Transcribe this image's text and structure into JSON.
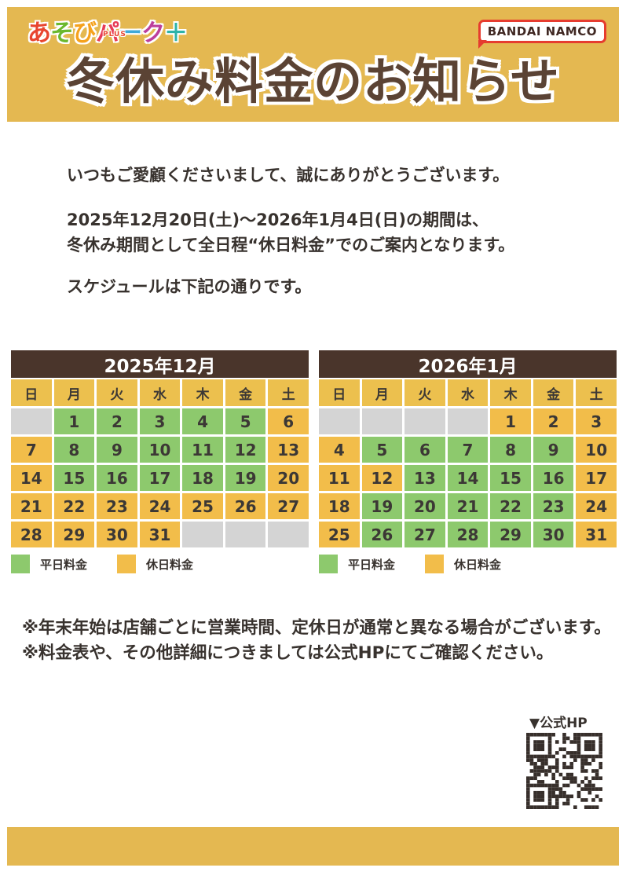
{
  "header": {
    "logo": {
      "chars": [
        {
          "ch": "あ",
          "color": "#e8452f"
        },
        {
          "ch": "そ",
          "color": "#6ab82d"
        },
        {
          "ch": "び",
          "color": "#f5a21d"
        },
        {
          "ch": "パ",
          "color": "#e73b56"
        },
        {
          "ch": "ー",
          "color": "#3fa9d9"
        },
        {
          "ch": "ク",
          "color": "#bc3f9c"
        },
        {
          "ch": "＋",
          "color": "#2db3a8"
        }
      ],
      "sub_label": "PLUS"
    },
    "company_badge": "BANDAI NAMCO",
    "title": "冬休み料金のお知らせ"
  },
  "body": {
    "greeting": "いつもご愛顧くださいまして、誠にありがとうございます。",
    "period_lines": [
      "2025年12月20日(土)～2026年1月4日(日)の期間は、",
      "冬休み期間として全日程“休日料金”でのご案内となります。"
    ],
    "schedule_intro": "スケジュールは下記の通りです。"
  },
  "legend": {
    "weekday_label": "平日料金",
    "holiday_label": "休日料金"
  },
  "calendars": [
    {
      "title": "2025年12月",
      "day_headers": [
        "日",
        "月",
        "火",
        "水",
        "木",
        "金",
        "土"
      ],
      "weeks": [
        [
          {
            "day": "",
            "type": "empty"
          },
          {
            "day": "1",
            "type": "weekday"
          },
          {
            "day": "2",
            "type": "weekday"
          },
          {
            "day": "3",
            "type": "weekday"
          },
          {
            "day": "4",
            "type": "weekday"
          },
          {
            "day": "5",
            "type": "weekday"
          },
          {
            "day": "6",
            "type": "holiday"
          }
        ],
        [
          {
            "day": "7",
            "type": "holiday"
          },
          {
            "day": "8",
            "type": "weekday"
          },
          {
            "day": "9",
            "type": "weekday"
          },
          {
            "day": "10",
            "type": "weekday"
          },
          {
            "day": "11",
            "type": "weekday"
          },
          {
            "day": "12",
            "type": "weekday"
          },
          {
            "day": "13",
            "type": "holiday"
          }
        ],
        [
          {
            "day": "14",
            "type": "holiday"
          },
          {
            "day": "15",
            "type": "weekday"
          },
          {
            "day": "16",
            "type": "weekday"
          },
          {
            "day": "17",
            "type": "weekday"
          },
          {
            "day": "18",
            "type": "weekday"
          },
          {
            "day": "19",
            "type": "weekday"
          },
          {
            "day": "20",
            "type": "holiday"
          }
        ],
        [
          {
            "day": "21",
            "type": "holiday"
          },
          {
            "day": "22",
            "type": "holiday"
          },
          {
            "day": "23",
            "type": "holiday"
          },
          {
            "day": "24",
            "type": "holiday"
          },
          {
            "day": "25",
            "type": "holiday"
          },
          {
            "day": "26",
            "type": "holiday"
          },
          {
            "day": "27",
            "type": "holiday"
          }
        ],
        [
          {
            "day": "28",
            "type": "holiday"
          },
          {
            "day": "29",
            "type": "holiday"
          },
          {
            "day": "30",
            "type": "holiday"
          },
          {
            "day": "31",
            "type": "holiday"
          },
          {
            "day": "",
            "type": "empty"
          },
          {
            "day": "",
            "type": "empty"
          },
          {
            "day": "",
            "type": "empty"
          }
        ]
      ]
    },
    {
      "title": "2026年1月",
      "day_headers": [
        "日",
        "月",
        "火",
        "水",
        "木",
        "金",
        "土"
      ],
      "weeks": [
        [
          {
            "day": "",
            "type": "empty"
          },
          {
            "day": "",
            "type": "empty"
          },
          {
            "day": "",
            "type": "empty"
          },
          {
            "day": "",
            "type": "empty"
          },
          {
            "day": "1",
            "type": "holiday"
          },
          {
            "day": "2",
            "type": "holiday"
          },
          {
            "day": "3",
            "type": "holiday"
          }
        ],
        [
          {
            "day": "4",
            "type": "holiday"
          },
          {
            "day": "5",
            "type": "weekday"
          },
          {
            "day": "6",
            "type": "weekday"
          },
          {
            "day": "7",
            "type": "weekday"
          },
          {
            "day": "8",
            "type": "weekday"
          },
          {
            "day": "9",
            "type": "weekday"
          },
          {
            "day": "10",
            "type": "holiday"
          }
        ],
        [
          {
            "day": "11",
            "type": "holiday"
          },
          {
            "day": "12",
            "type": "holiday"
          },
          {
            "day": "13",
            "type": "weekday"
          },
          {
            "day": "14",
            "type": "weekday"
          },
          {
            "day": "15",
            "type": "weekday"
          },
          {
            "day": "16",
            "type": "weekday"
          },
          {
            "day": "17",
            "type": "holiday"
          }
        ],
        [
          {
            "day": "18",
            "type": "holiday"
          },
          {
            "day": "19",
            "type": "weekday"
          },
          {
            "day": "20",
            "type": "weekday"
          },
          {
            "day": "21",
            "type": "weekday"
          },
          {
            "day": "22",
            "type": "weekday"
          },
          {
            "day": "23",
            "type": "weekday"
          },
          {
            "day": "24",
            "type": "holiday"
          }
        ],
        [
          {
            "day": "25",
            "type": "holiday"
          },
          {
            "day": "26",
            "type": "weekday"
          },
          {
            "day": "27",
            "type": "weekday"
          },
          {
            "day": "28",
            "type": "weekday"
          },
          {
            "day": "29",
            "type": "weekday"
          },
          {
            "day": "30",
            "type": "weekday"
          },
          {
            "day": "31",
            "type": "holiday"
          }
        ]
      ]
    }
  ],
  "notes": [
    "※年末年始は店舗ごとに営業時間、定休日が通常と異なる場合がございます。",
    "※料金表や、その他詳細につきましては公式HPにてご確認ください。"
  ],
  "footer": {
    "hp_label": "▼公式HP"
  },
  "colors": {
    "banner_gold": "#e4b851",
    "title_brown": "#5b4334",
    "calendar_title_brown": "#4a352b",
    "weekday_green": "#8dc96d",
    "holiday_yellow": "#f2bd4a",
    "day_header_gold": "#ecc04e",
    "empty_gray": "#d4d4d4",
    "badge_red": "#e63c2f",
    "text_dark": "#38322e"
  }
}
